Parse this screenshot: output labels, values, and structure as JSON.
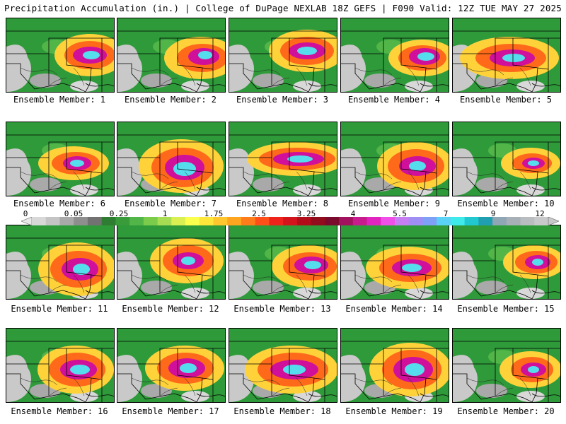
{
  "header": {
    "title": "Precipitation Accumulation (in.) | College of DuPage NEXLAB",
    "valid": "18Z GEFS | F090 Valid: 12Z TUE MAY 27 2025"
  },
  "colorbar": {
    "ticks": [
      "0",
      "0.05",
      "0.25",
      "1",
      "1.75",
      "2.5",
      "3.25",
      "4",
      "5.5",
      "7",
      "9",
      "12"
    ],
    "colors": [
      "#d8d8d8",
      "#c4c4c4",
      "#a9a9a9",
      "#8e8e8e",
      "#727272",
      "#2e7d32",
      "#3a9b3a",
      "#52b548",
      "#7ccc4c",
      "#a8dc52",
      "#d9ef52",
      "#fbff4d",
      "#ffe63b",
      "#ffc62e",
      "#ffa51f",
      "#ff7c1a",
      "#ff4f18",
      "#f0221c",
      "#d3141d",
      "#b20e1a",
      "#910c1c",
      "#7a0b2c",
      "#a2125e",
      "#c71b8e",
      "#e124c0",
      "#ef4fe8",
      "#c67ef2",
      "#9f8ff5",
      "#7fa0f7",
      "#5bd2f5",
      "#3eeaea",
      "#22c8cf",
      "#1f9fb0",
      "#8fa6b5",
      "#a7b0b6",
      "#b9bdbf",
      "#c7c9ca"
    ]
  },
  "panels": [
    {
      "caption": "Ensemble Member: 1"
    },
    {
      "caption": "Ensemble Member: 2"
    },
    {
      "caption": "Ensemble Member: 3"
    },
    {
      "caption": "Ensemble Member: 4"
    },
    {
      "caption": "Ensemble Member: 5"
    },
    {
      "caption": "Ensemble Member: 6"
    },
    {
      "caption": "Ensemble Member: 7"
    },
    {
      "caption": "Ensemble Member: 8"
    },
    {
      "caption": "Ensemble Member: 9"
    },
    {
      "caption": "Ensemble Member: 10"
    },
    {
      "caption": "Ensemble Member: 11"
    },
    {
      "caption": "Ensemble Member: 12"
    },
    {
      "caption": "Ensemble Member: 13"
    },
    {
      "caption": "Ensemble Member: 14"
    },
    {
      "caption": "Ensemble Member: 15"
    },
    {
      "caption": "Ensemble Member: 16"
    },
    {
      "caption": "Ensemble Member: 17"
    },
    {
      "caption": "Ensemble Member: 18"
    },
    {
      "caption": "Ensemble Member: 19"
    },
    {
      "caption": "Ensemble Member: 20"
    }
  ]
}
